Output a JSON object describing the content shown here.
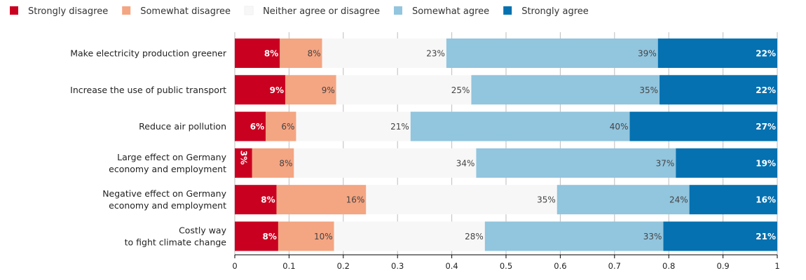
{
  "chart_data": {
    "type": "bar",
    "orientation": "horizontal",
    "stacked": true,
    "categories": [
      [
        "Make electricity production greener"
      ],
      [
        "Increase the use of public transport"
      ],
      [
        "Reduce air pollution"
      ],
      [
        "Large effect on Germany",
        "economy and employment"
      ],
      [
        "Negative effect on Germany",
        "economy and employment"
      ],
      [
        "Costly way",
        "to fight climate change"
      ]
    ],
    "series": [
      {
        "name": "Strongly disagree",
        "color": "#ca0020",
        "values": [
          0.083,
          0.093,
          0.057,
          0.032,
          0.077,
          0.08
        ],
        "labels": [
          "8%",
          "9%",
          "6%",
          "3%",
          "8%",
          "8%"
        ],
        "label_style": "light"
      },
      {
        "name": "Somewhat disagree",
        "color": "#f4a582",
        "values": [
          0.078,
          0.094,
          0.056,
          0.077,
          0.165,
          0.103
        ],
        "labels": [
          "8%",
          "9%",
          "6%",
          "8%",
          "16%",
          "10%"
        ],
        "label_style": "dark"
      },
      {
        "name": "Neither agree or disagree",
        "color": "#f7f7f7",
        "values": [
          0.229,
          0.249,
          0.211,
          0.336,
          0.352,
          0.278
        ],
        "labels": [
          "23%",
          "25%",
          "21%",
          "34%",
          "35%",
          "28%"
        ],
        "label_style": "dark"
      },
      {
        "name": "Somewhat agree",
        "color": "#92c5de",
        "values": [
          0.39,
          0.347,
          0.404,
          0.368,
          0.244,
          0.329
        ],
        "labels": [
          "39%",
          "35%",
          "40%",
          "37%",
          "24%",
          "33%"
        ],
        "label_style": "dark"
      },
      {
        "name": "Strongly agree",
        "color": "#0571b0",
        "values": [
          0.22,
          0.217,
          0.272,
          0.187,
          0.162,
          0.21
        ],
        "labels": [
          "22%",
          "22%",
          "27%",
          "19%",
          "16%",
          "21%"
        ],
        "label_style": "light"
      }
    ],
    "xlim": [
      0,
      1
    ],
    "xticks": [
      0,
      0.1,
      0.2,
      0.3,
      0.4,
      0.5,
      0.6,
      0.7,
      0.8,
      0.9,
      1
    ],
    "xtick_labels": [
      "0",
      "0.1",
      "0.2",
      "0.3",
      "0.4",
      "0.5",
      "0.6",
      "0.7",
      "0.8",
      "0.9",
      "1"
    ],
    "title": "",
    "xlabel": "",
    "ylabel": "",
    "grid": "vertical",
    "legend_position": "top-left",
    "rotated_label": {
      "series_index": 0,
      "category_index": 3
    }
  }
}
